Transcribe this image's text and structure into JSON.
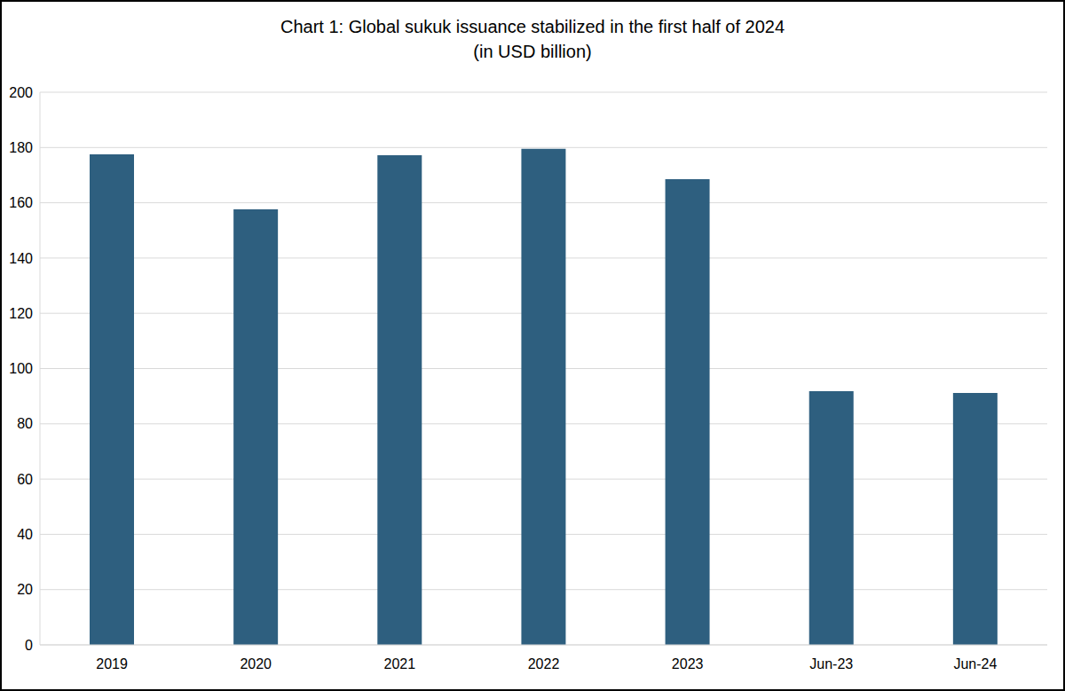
{
  "chart_data": {
    "type": "bar",
    "title": "Chart 1: Global sukuk issuance stabilized in the first half of 2024",
    "subtitle": "(in USD billion)",
    "categories": [
      "2019",
      "2020",
      "2021",
      "2022",
      "2023",
      "Jun-23",
      "Jun-24"
    ],
    "values": [
      177.5,
      157.6,
      177.2,
      179.5,
      168.5,
      91.8,
      91.2
    ],
    "color": "#2e5f7f",
    "ylim": [
      0,
      200
    ],
    "yticks": [
      0,
      20,
      40,
      60,
      80,
      100,
      120,
      140,
      160,
      180,
      200
    ],
    "grid": true
  }
}
